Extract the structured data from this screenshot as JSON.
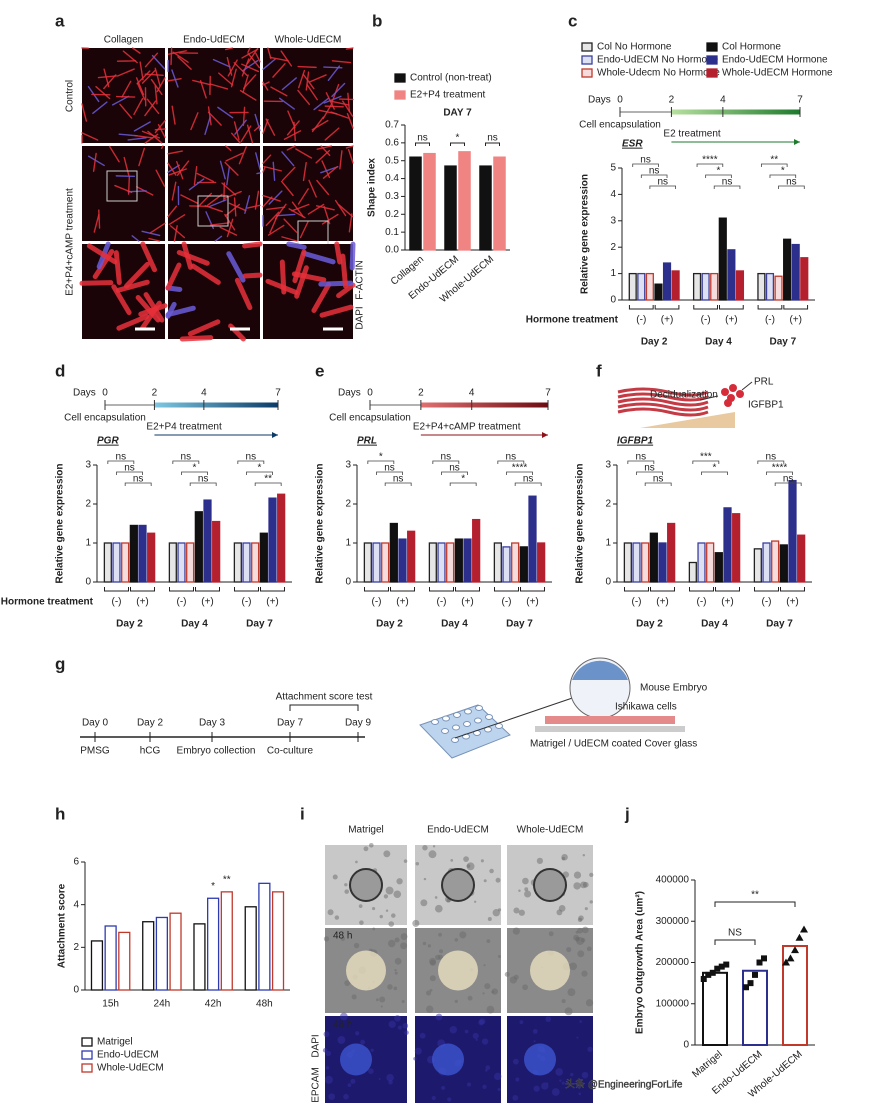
{
  "watermark": "头条 @EngineeringForLife",
  "panel_labels": [
    "a",
    "b",
    "c",
    "d",
    "e",
    "f",
    "g",
    "h",
    "i",
    "j"
  ],
  "panel_a": {
    "columns": [
      "Collagen",
      "Endo-UdECM",
      "Whole-UdECM"
    ],
    "rows": [
      "Control",
      "E2+P4+cAMP treatment"
    ],
    "stain": [
      "DAPI",
      "F-ACTIN"
    ]
  },
  "timelines": [
    {
      "label": "Days",
      "days": [
        0,
        2,
        4,
        7
      ],
      "start": "Cell encapsulation",
      "treatment": "E2 treatment"
    },
    {
      "label": "Days",
      "days": [
        0,
        2,
        4,
        7
      ],
      "start": "Cell encapsulation",
      "treatment": "E2+P4 treatment"
    },
    {
      "label": "Days",
      "days": [
        0,
        2,
        4,
        7
      ],
      "start": "Cell encapsulation",
      "treatment": "E2+P4+cAMP treatment"
    }
  ],
  "panel_f_diagram": {
    "process": "Decidualization",
    "markers": [
      "PRL",
      "IGFBP1"
    ]
  },
  "panel_g": {
    "days": [
      "Day 0",
      "Day 2",
      "Day 3",
      "Day 7",
      "Day 9"
    ],
    "events": [
      "PMSG",
      "hCG",
      "Embryo collection",
      "Co-culture"
    ],
    "test": "Attachment score test",
    "diagram": [
      "Mouse Embryo",
      "Ishikawa cells",
      "Matrigel / UdECM coated Cover glass"
    ]
  },
  "panel_i": {
    "columns": [
      "Matrigel",
      "Endo-UdECM",
      "Whole-UdECM"
    ],
    "rows": [
      "48 h",
      "48 h"
    ],
    "stain": [
      "EPCAM",
      "DAPI"
    ]
  },
  "chart_data": [
    {
      "type": "bar",
      "title": "DAY 7",
      "ylabel": "Shape index",
      "categories": [
        "Collagen",
        "Endo-UdECM",
        "Whole-UdECM"
      ],
      "series": [
        {
          "name": "Control (non-treat)",
          "color": "#111111",
          "values": [
            0.52,
            0.47,
            0.47
          ]
        },
        {
          "name": "E2+P4 treatment",
          "color": "#f08482",
          "values": [
            0.54,
            0.55,
            0.52
          ]
        }
      ],
      "ylim": [
        0,
        0.7
      ],
      "yticks": [
        {
          "value": 0,
          "label": "0.0"
        },
        0.1,
        0.2,
        0.3,
        0.4,
        0.5,
        0.6,
        0.7
      ],
      "significance": [
        "ns",
        "*",
        "ns"
      ]
    },
    {
      "type": "bar",
      "title": "ESR",
      "ylabel": "Relative gene expression",
      "categories": [
        "Day 2",
        "Day 4",
        "Day 7"
      ],
      "row_label": "Hormone treatment",
      "hormone_labels": [
        "(-)",
        "(+)"
      ],
      "series": [
        {
          "name": "Col No Hormone",
          "color": "#222222",
          "fill": "#e6e6e6",
          "values": [
            1,
            1,
            1
          ]
        },
        {
          "name": "Endo-UdECM No Hormone",
          "color": "#3a3f9e",
          "fill": "#dde0f2",
          "values": [
            1,
            1,
            1
          ]
        },
        {
          "name": "Whole-Udecm No Hormone",
          "color": "#c0392b",
          "fill": "#f6dcdc",
          "values": [
            1,
            1,
            0.9
          ]
        },
        {
          "name": "Col Hormone",
          "color": "#111111",
          "values": [
            0.6,
            3.1,
            2.3
          ]
        },
        {
          "name": "Endo-UdECM Hormone",
          "color": "#2d2f8c",
          "values": [
            1.4,
            1.9,
            2.1
          ]
        },
        {
          "name": "Whole-UdECM Hormone",
          "color": "#b5202e",
          "values": [
            1.1,
            1.1,
            1.6
          ]
        }
      ],
      "ylim": [
        0,
        5
      ],
      "yticks": [
        0,
        1,
        2,
        3,
        4,
        5
      ],
      "significance": [
        [
          "ns",
          "ns",
          "ns"
        ],
        [
          "****",
          "*",
          "ns"
        ],
        [
          "**",
          "*",
          "ns"
        ]
      ]
    },
    {
      "type": "bar",
      "title": "PGR",
      "ylabel": "Relative gene expression",
      "categories": [
        "Day 2",
        "Day 4",
        "Day 7"
      ],
      "row_label": "Hormone treatment",
      "hormone_labels": [
        "(-)",
        "(+)"
      ],
      "series": [
        {
          "color": "#222222",
          "fill": "#e6e6e6",
          "values": [
            1,
            1,
            1
          ]
        },
        {
          "color": "#3a3f9e",
          "fill": "#dde0f2",
          "values": [
            1,
            1,
            1
          ]
        },
        {
          "color": "#c0392b",
          "fill": "#f6dcdc",
          "values": [
            1,
            1,
            1
          ]
        },
        {
          "color": "#111111",
          "values": [
            1.45,
            1.8,
            1.25
          ]
        },
        {
          "color": "#2d2f8c",
          "values": [
            1.45,
            2.1,
            2.15
          ]
        },
        {
          "color": "#b5202e",
          "values": [
            1.25,
            1.55,
            2.25
          ]
        }
      ],
      "ylim": [
        0,
        3
      ],
      "yticks": [
        0,
        1,
        2,
        3
      ],
      "significance": [
        [
          "ns",
          "ns",
          "ns"
        ],
        [
          "ns",
          "*",
          "ns"
        ],
        [
          "ns",
          "*",
          "**"
        ]
      ]
    },
    {
      "type": "bar",
      "title": "PRL",
      "ylabel": "Relative gene expression",
      "categories": [
        "Day 2",
        "Day 4",
        "Day 7"
      ],
      "hormone_labels": [
        "(-)",
        "(+)"
      ],
      "series": [
        {
          "color": "#222222",
          "fill": "#e6e6e6",
          "values": [
            1,
            1,
            1
          ]
        },
        {
          "color": "#3a3f9e",
          "fill": "#dde0f2",
          "values": [
            1,
            1,
            0.9
          ]
        },
        {
          "color": "#c0392b",
          "fill": "#f6dcdc",
          "values": [
            1,
            1,
            1
          ]
        },
        {
          "color": "#111111",
          "values": [
            1.5,
            1.1,
            0.9
          ]
        },
        {
          "color": "#2d2f8c",
          "values": [
            1.1,
            1.1,
            2.2
          ]
        },
        {
          "color": "#b5202e",
          "values": [
            1.3,
            1.6,
            1
          ]
        }
      ],
      "ylim": [
        0,
        3
      ],
      "yticks": [
        0,
        1,
        2,
        3
      ],
      "significance": [
        [
          "*",
          "ns",
          "ns"
        ],
        [
          "ns",
          "ns",
          "*"
        ],
        [
          "ns",
          "****",
          "ns"
        ]
      ]
    },
    {
      "type": "bar",
      "title": "IGFBP1",
      "ylabel": "Relative gene expression",
      "categories": [
        "Day 2",
        "Day 4",
        "Day 7"
      ],
      "hormone_labels": [
        "(-)",
        "(+)"
      ],
      "series": [
        {
          "color": "#222222",
          "fill": "#e6e6e6",
          "values": [
            1,
            0.5,
            0.85
          ]
        },
        {
          "color": "#3a3f9e",
          "fill": "#dde0f2",
          "values": [
            1,
            1,
            1
          ]
        },
        {
          "color": "#c0392b",
          "fill": "#f6dcdc",
          "values": [
            1,
            1,
            1.05
          ]
        },
        {
          "color": "#111111",
          "values": [
            1.25,
            0.75,
            0.95
          ]
        },
        {
          "color": "#2d2f8c",
          "values": [
            1,
            1.9,
            2.6
          ]
        },
        {
          "color": "#b5202e",
          "values": [
            1.5,
            1.75,
            1.2
          ]
        }
      ],
      "ylim": [
        0,
        3
      ],
      "yticks": [
        0,
        1,
        2,
        3
      ],
      "significance": [
        [
          "ns",
          "ns",
          "ns"
        ],
        [
          "***",
          "*"
        ],
        [
          "ns",
          "****",
          "ns"
        ]
      ]
    },
    {
      "type": "bar",
      "ylabel": "Attachment score",
      "categories": [
        "15h",
        "24h",
        "42h",
        "48h"
      ],
      "series": [
        {
          "name": "Matrigel",
          "color": "#111111",
          "fill": "#ffffff",
          "values": [
            2.3,
            3.2,
            3.1,
            3.9
          ]
        },
        {
          "name": "Endo-UdECM",
          "color": "#2d3bb0",
          "fill": "#ffffff",
          "values": [
            3.0,
            3.4,
            4.3,
            5.0
          ],
          "labels": [
            null,
            null,
            "*",
            null
          ]
        },
        {
          "name": "Whole-UdECM",
          "color": "#c0392b",
          "fill": "#ffffff",
          "values": [
            2.7,
            3.6,
            4.6,
            4.6
          ],
          "labels": [
            null,
            null,
            "**",
            null
          ]
        }
      ],
      "ylim": [
        0,
        6
      ],
      "yticks": [
        0,
        2,
        4,
        6
      ]
    },
    {
      "type": "bar_scatter",
      "ylabel": "Embryo Outgrowth Area (um²)",
      "categories": [
        "Matrigel",
        "Endo-UdECM",
        "Whole-UdECM"
      ],
      "colors": [
        "#111111",
        "#2d2f8c",
        "#c0392b"
      ],
      "markers": [
        "square",
        "square",
        "triangle"
      ],
      "values": [
        175000,
        180000,
        240000
      ],
      "points": [
        [
          160000,
          170000,
          175000,
          185000,
          190000,
          195000
        ],
        [
          140000,
          150000,
          170000,
          200000,
          210000
        ],
        [
          200000,
          210000,
          230000,
          260000,
          280000
        ]
      ],
      "ylim": [
        0,
        400000
      ],
      "yticks": [
        0,
        100000,
        200000,
        300000,
        400000
      ],
      "comparisons": [
        "NS",
        "**"
      ]
    }
  ]
}
